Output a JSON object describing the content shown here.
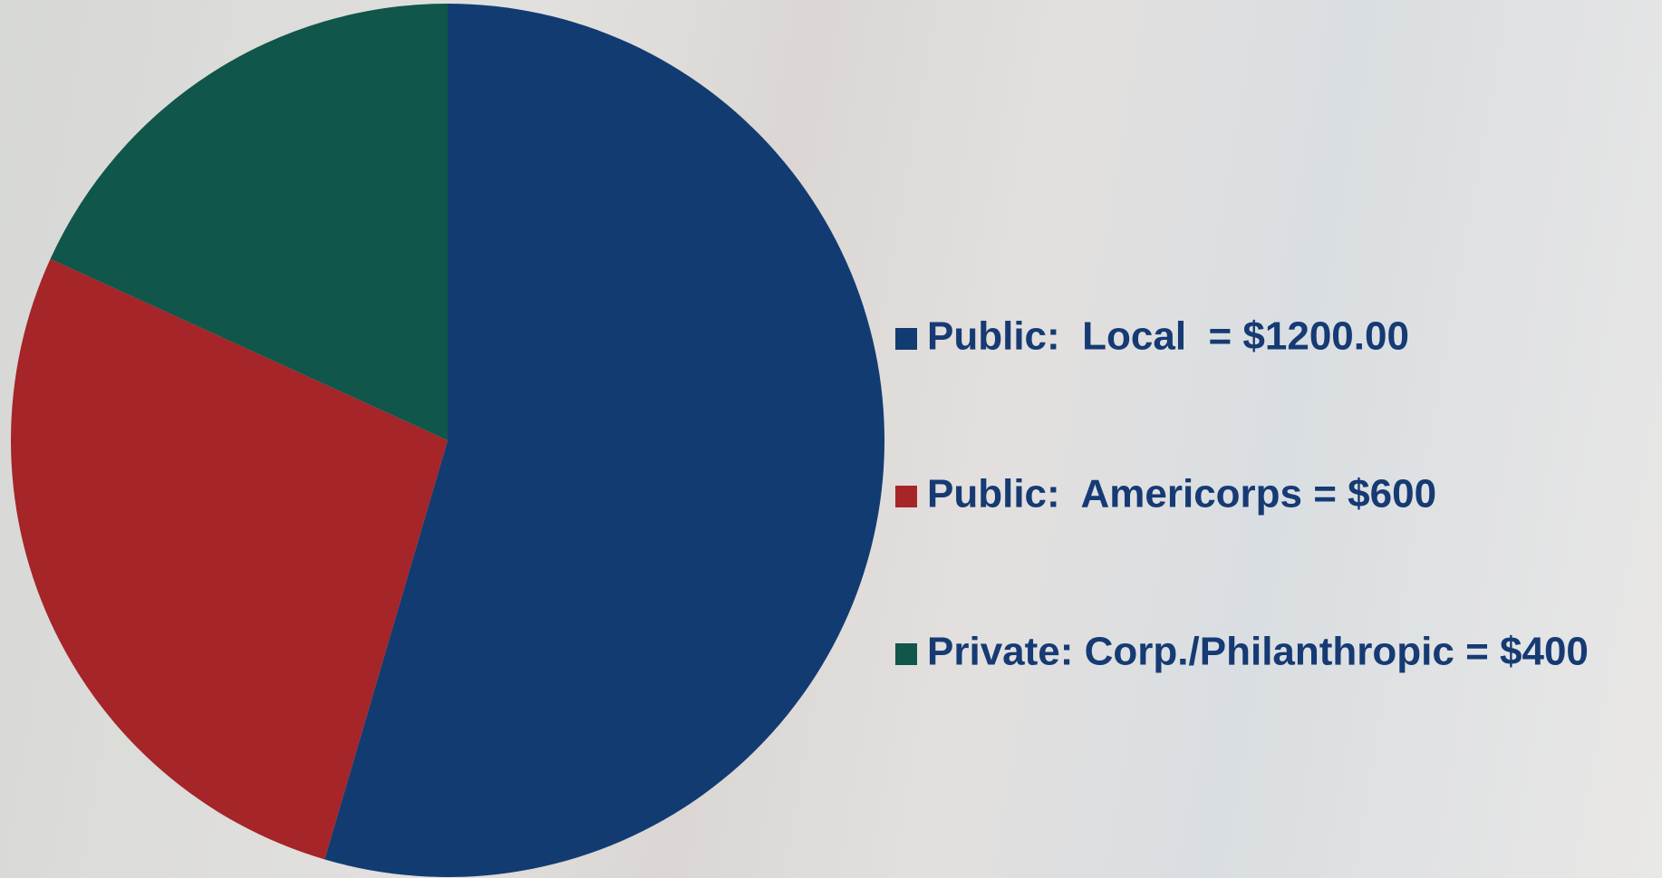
{
  "chart_data": {
    "type": "pie",
    "categories": [
      "Public:  Local  = $1200.00",
      "Public:  Americorps = $600",
      "Private: Corp./Philanthropic = $400"
    ],
    "values": [
      1200,
      600,
      400
    ],
    "colors": [
      "#123b72",
      "#a52528",
      "#10564a"
    ]
  }
}
